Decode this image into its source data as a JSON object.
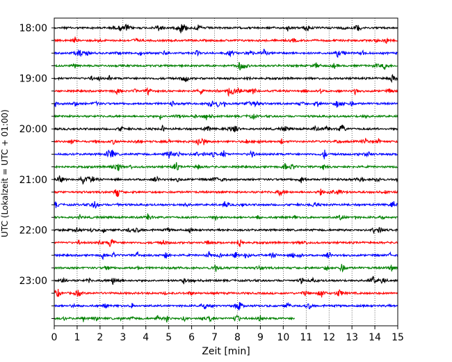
{
  "chart_data": {
    "type": "line",
    "title": "",
    "xlabel": "Zeit  [min]",
    "ylabel": "UTC (Lokalzeit = UTC + 01:00)",
    "xlim": [
      0,
      15
    ],
    "x_ticks": [
      0,
      1,
      2,
      3,
      4,
      5,
      6,
      7,
      8,
      9,
      10,
      11,
      12,
      13,
      14,
      15
    ],
    "y_tick_labels": [
      "18:00",
      "19:00",
      "20:00",
      "21:00",
      "22:00",
      "23:00"
    ],
    "grid": "vertical dotted lines at each minute",
    "row_interval_minutes": 15,
    "colors": [
      "#000000",
      "#ff0000",
      "#0000ff",
      "#008000"
    ],
    "series": [
      {
        "start": "18:00",
        "color": "#000000",
        "end_minute": 15
      },
      {
        "start": "18:15",
        "color": "#ff0000",
        "end_minute": 15
      },
      {
        "start": "18:30",
        "color": "#0000ff",
        "end_minute": 15
      },
      {
        "start": "18:45",
        "color": "#008000",
        "end_minute": 15
      },
      {
        "start": "19:00",
        "color": "#000000",
        "end_minute": 15
      },
      {
        "start": "19:15",
        "color": "#ff0000",
        "end_minute": 15
      },
      {
        "start": "19:30",
        "color": "#0000ff",
        "end_minute": 15
      },
      {
        "start": "19:45",
        "color": "#008000",
        "end_minute": 15
      },
      {
        "start": "20:00",
        "color": "#000000",
        "end_minute": 15
      },
      {
        "start": "20:15",
        "color": "#ff0000",
        "end_minute": 15
      },
      {
        "start": "20:30",
        "color": "#0000ff",
        "end_minute": 15
      },
      {
        "start": "20:45",
        "color": "#008000",
        "end_minute": 15
      },
      {
        "start": "21:00",
        "color": "#000000",
        "end_minute": 15
      },
      {
        "start": "21:15",
        "color": "#ff0000",
        "end_minute": 15
      },
      {
        "start": "21:30",
        "color": "#0000ff",
        "end_minute": 15
      },
      {
        "start": "21:45",
        "color": "#008000",
        "end_minute": 15
      },
      {
        "start": "22:00",
        "color": "#000000",
        "end_minute": 15
      },
      {
        "start": "22:15",
        "color": "#ff0000",
        "end_minute": 15
      },
      {
        "start": "22:30",
        "color": "#0000ff",
        "end_minute": 15
      },
      {
        "start": "22:45",
        "color": "#008000",
        "end_minute": 15
      },
      {
        "start": "23:00",
        "color": "#000000",
        "end_minute": 15
      },
      {
        "start": "23:15",
        "color": "#ff0000",
        "end_minute": 15
      },
      {
        "start": "23:30",
        "color": "#0000ff",
        "end_minute": 15
      },
      {
        "start": "23:45",
        "color": "#008000",
        "end_minute": 10.5
      }
    ]
  }
}
